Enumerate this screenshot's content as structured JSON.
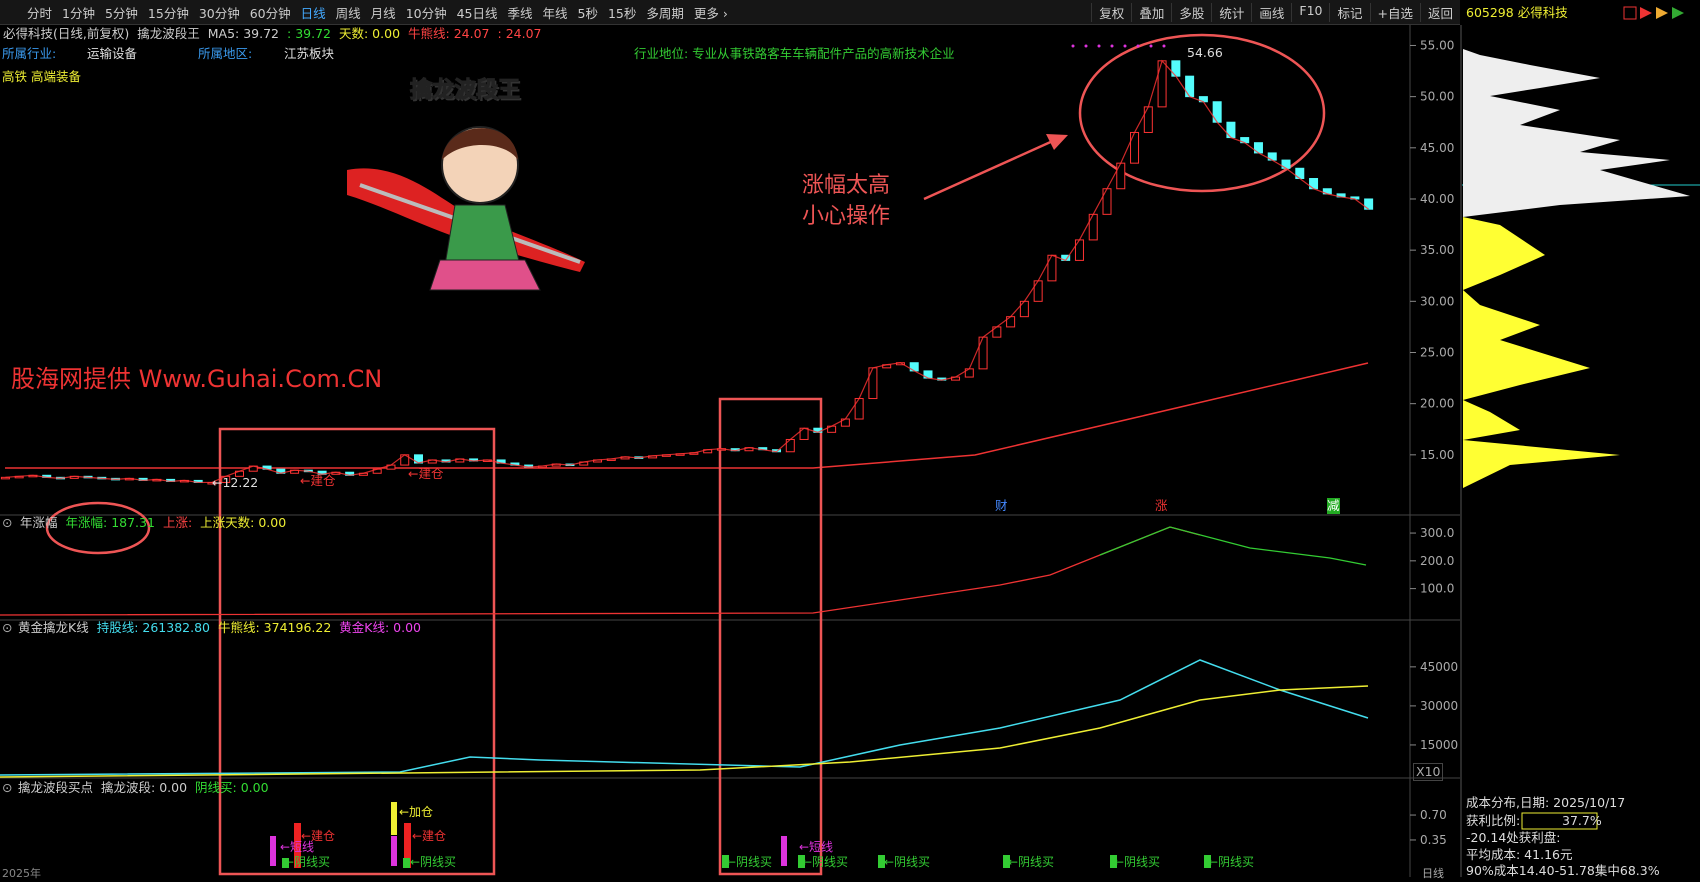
{
  "toolbar": {
    "periods": [
      "分时",
      "1分钟",
      "5分钟",
      "15分钟",
      "30分钟",
      "60分钟",
      "日线",
      "周线",
      "月线",
      "10分钟",
      "45日线",
      "季线",
      "年线",
      "5秒",
      "15秒",
      "多周期",
      "更多 ›"
    ],
    "active_index": 6,
    "tools": [
      "复权",
      "叠加",
      "多股",
      "统计",
      "画线",
      "F10",
      "标记",
      "+自选",
      "返回"
    ],
    "stock": "605298 必得科技"
  },
  "header": [
    {
      "text": "必得科技(日线,前复权)",
      "color": "#cccccc"
    },
    {
      "text": "擒龙波段王",
      "color": "#cccccc"
    },
    {
      "text": "MA5: 39.72",
      "color": "#cccccc"
    },
    {
      "text": ": 39.72",
      "color": "#33dd33"
    },
    {
      "text": "天数: 0.00",
      "color": "#eeee33"
    },
    {
      "text": "牛熊线: 24.07",
      "color": "#ff4444"
    },
    {
      "text": ": 24.07",
      "color": "#ff4444"
    }
  ],
  "info": {
    "industry_label": "所属行业:",
    "industry": "运输设备",
    "region_label": "所属地区:",
    "region": "江苏板块",
    "position": "行业地位: 专业从事铁路客车车辆配件产品的高新技术企业",
    "concepts": "高铁 高端装备"
  },
  "annotations": {
    "banner_title": "擒龙波段王",
    "watermark": "股海网提供 Www.Guhai.Com.CN",
    "warning": [
      "涨幅太高",
      "小心操作"
    ],
    "high": "54.66",
    "low": "←12.22",
    "build": [
      "←建仓",
      "←建仓"
    ],
    "events": [
      "财",
      "涨",
      "减"
    ]
  },
  "main_panel": {
    "ylim": [
      10,
      57
    ],
    "yticks": [
      {
        "value": 15,
        "label": "15.00"
      },
      {
        "value": 20,
        "label": "20.00"
      },
      {
        "value": 25,
        "label": "25.00"
      },
      {
        "value": 30,
        "label": "30.00"
      },
      {
        "value": 35,
        "label": "35.00"
      },
      {
        "value": 40,
        "label": "40.00"
      },
      {
        "value": 45,
        "label": "45.00"
      },
      {
        "value": 50,
        "label": "50.00"
      },
      {
        "value": 55,
        "label": "55.00"
      }
    ],
    "close": [
      12.8,
      12.9,
      13.0,
      12.8,
      12.7,
      12.9,
      12.8,
      12.7,
      12.6,
      12.7,
      12.5,
      12.6,
      12.4,
      12.5,
      12.3,
      12.3,
      12.9,
      13.4,
      13.9,
      13.6,
      13.2,
      13.5,
      13.4,
      13.1,
      13.3,
      13.0,
      13.2,
      13.6,
      14.0,
      15.0,
      14.2,
      14.5,
      14.3,
      14.6,
      14.4,
      14.5,
      14.2,
      14.0,
      13.8,
      13.9,
      14.1,
      14.0,
      14.3,
      14.5,
      14.6,
      14.8,
      14.7,
      14.9,
      15.0,
      15.1,
      15.2,
      15.5,
      15.6,
      15.4,
      15.7,
      15.5,
      15.3,
      16.5,
      17.6,
      17.2,
      17.8,
      18.5,
      20.5,
      23.5,
      23.8,
      24.0,
      23.2,
      22.5,
      22.3,
      22.6,
      23.4,
      26.5,
      27.5,
      28.5,
      30.0,
      32.0,
      34.5,
      34.0,
      36.0,
      38.5,
      41.0,
      43.5,
      46.5,
      49.0,
      53.5,
      52.0,
      50.0,
      49.5,
      47.5,
      46.0,
      45.5,
      44.5,
      43.8,
      43.0,
      42.0,
      41.0,
      40.5,
      40.2,
      40.0,
      39.0
    ]
  },
  "panel_yearly": {
    "header": [
      {
        "text": "年涨幅",
        "color": "#cccccc"
      },
      {
        "text": "年涨幅: 187.31",
        "color": "#33dd33"
      },
      {
        "text": "上涨:",
        "color": "#ff4444"
      },
      {
        "text": "上涨天数: 0.00",
        "color": "#eeee33"
      }
    ],
    "ylim": [
      -13,
      365
    ],
    "yticks": [
      {
        "value": 100,
        "label": "100.0"
      },
      {
        "value": 200,
        "label": "200.0"
      },
      {
        "value": 300,
        "label": "300.0"
      }
    ]
  },
  "panel_gold": {
    "header": [
      {
        "text": "黄金擒龙K线",
        "color": "#cccccc"
      },
      {
        "text": "持股线: 261382.80",
        "color": "#44ddee"
      },
      {
        "text": "牛熊线: 374196.22",
        "color": "#eeee33"
      },
      {
        "text": "黄金K线: 0.00",
        "color": "#ee44ee"
      }
    ],
    "ylim": [
      2300,
      63000
    ],
    "yticks": [
      15000,
      30000,
      45000
    ],
    "scale_label": "X10"
  },
  "panel_buy": {
    "header": [
      {
        "text": "擒龙波段买点",
        "color": "#cccccc"
      },
      {
        "text": "擒龙波段: 0.00",
        "color": "#cccccc"
      },
      {
        "text": "阴线买: 0.00",
        "color": "#33dd33"
      }
    ],
    "ylim": [
      -0.17,
      1.22
    ],
    "yticks": [
      {
        "value": 0.35,
        "label": "0.35"
      },
      {
        "value": 0.7,
        "label": "0.70"
      }
    ],
    "labels": [
      "←加仓",
      "←建仓",
      "←建仓",
      "←短线",
      "←短线",
      "←阴线买",
      "←阴线买",
      "←阴线买",
      "←阴线买",
      "←阴线买",
      "←阴线买",
      "←阴线买",
      "←阴线买"
    ]
  },
  "footer": {
    "year": "2025年",
    "period": "日线"
  },
  "chip": {
    "title": "成本分布,日期: 2025/10/17",
    "profit_label": "获利比例:",
    "profit": "37.7%",
    "line2": "-20.14处获利盘:",
    "avg": "平均成本: 41.16元",
    "range": "90%成本14.40-51.78集中68.3%"
  }
}
